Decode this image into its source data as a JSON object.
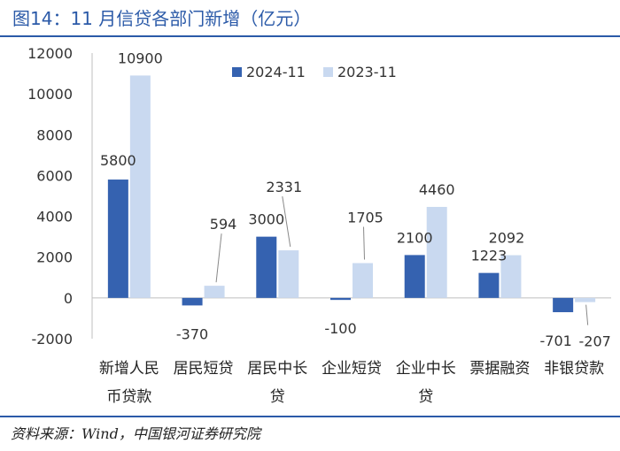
{
  "figure_title": "图14：11 月信贷各部门新增（亿元）",
  "source_note": "资料来源：Wind，中国银河证券研究院",
  "chart_data": {
    "type": "bar",
    "title": "11 月信贷各部门新增（亿元）",
    "categories": [
      "新增人民币贷款",
      "居民短贷",
      "居民中长贷",
      "企业短贷",
      "企业中长贷",
      "票据融资",
      "非银贷款"
    ],
    "category_lines": [
      [
        "新增人民",
        "币贷款"
      ],
      [
        "居民短贷"
      ],
      [
        "居民中长",
        "贷"
      ],
      [
        "企业短贷"
      ],
      [
        "企业中长",
        "贷"
      ],
      [
        "票据融资"
      ],
      [
        "非银贷款"
      ]
    ],
    "series": [
      {
        "name": "2024-11",
        "values": [
          5800,
          -370,
          3000,
          -100,
          2100,
          1223,
          -701
        ],
        "color": "#3562b0"
      },
      {
        "name": "2023-11",
        "values": [
          10900,
          594,
          2331,
          1705,
          4460,
          2092,
          -207
        ],
        "color": "#c9d9f0"
      }
    ],
    "data_labels": {
      "2024-11": [
        "5800",
        "-370",
        "3000",
        "-100",
        "2100",
        "1223",
        "-701"
      ],
      "2023-11": [
        "10900",
        "594",
        "2331",
        "1705",
        "4460",
        "2092",
        "-207"
      ]
    },
    "ylim": [
      -2000,
      12000
    ],
    "yticks": [
      -2000,
      0,
      2000,
      4000,
      6000,
      8000,
      10000,
      12000
    ],
    "ytick_labels": [
      "-2000",
      "0",
      "2000",
      "4000",
      "6000",
      "8000",
      "10000",
      "12000"
    ],
    "xlabel": "",
    "ylabel": "",
    "grid": false,
    "legend_position": "top-center"
  }
}
